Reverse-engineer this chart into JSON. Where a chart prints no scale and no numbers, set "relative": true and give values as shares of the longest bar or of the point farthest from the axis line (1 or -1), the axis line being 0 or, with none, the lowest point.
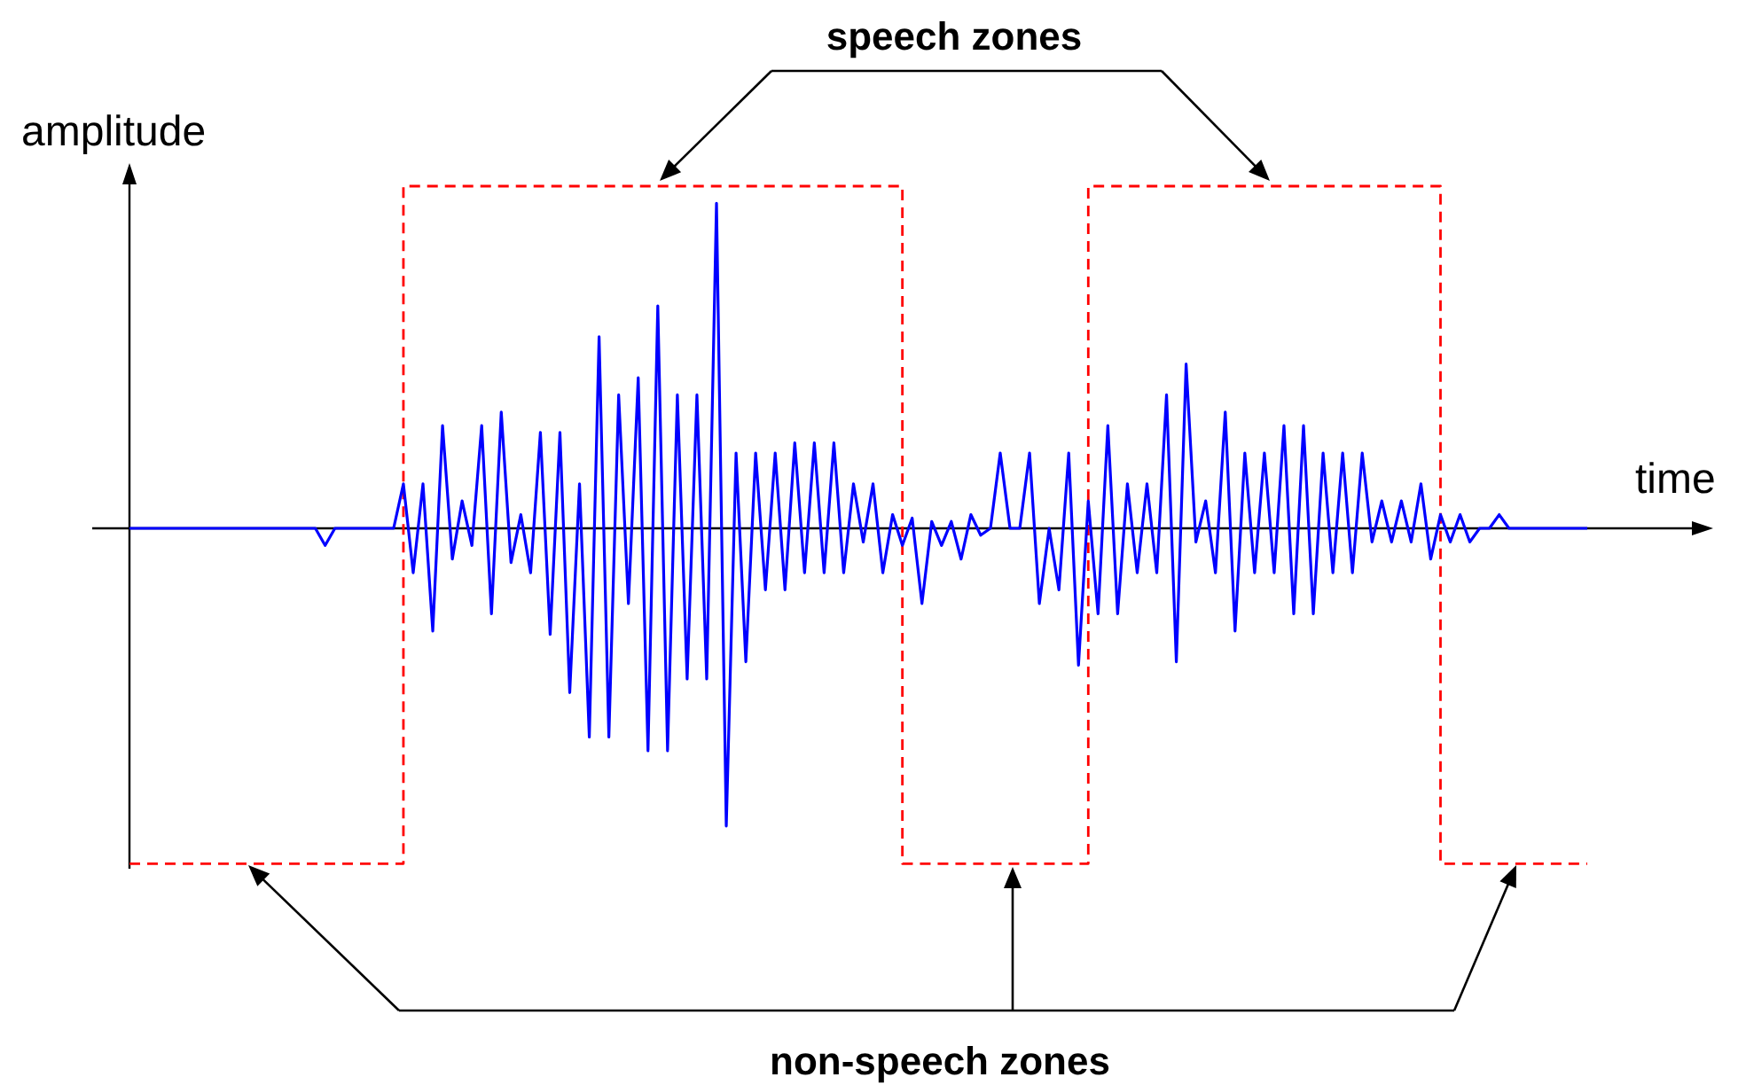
{
  "chart_data": {
    "type": "line",
    "relative": true,
    "xlabel": "time",
    "ylabel": "amplitude",
    "annotations": [
      "speech zones",
      "non-speech zones"
    ],
    "categories": [
      null,
      null,
      null,
      null,
      null,
      null,
      null,
      null,
      null,
      null,
      null,
      null,
      null,
      null,
      null,
      null,
      null,
      null,
      null,
      null,
      null,
      null,
      null,
      null,
      null,
      null,
      null,
      null,
      null,
      null,
      null,
      null,
      null,
      null,
      null,
      null,
      null,
      null,
      null,
      null,
      null,
      null,
      null,
      null,
      null,
      null,
      null,
      null,
      null,
      null,
      null,
      null,
      null,
      null,
      null,
      null,
      null,
      null,
      null,
      null,
      null,
      null,
      null,
      null,
      null,
      null,
      null,
      null,
      null,
      null,
      null,
      null,
      null,
      null,
      null,
      null,
      null,
      null,
      null,
      null,
      null,
      null,
      null,
      null,
      null,
      null,
      null,
      null,
      null,
      null,
      null,
      null,
      null,
      null,
      null,
      null,
      null,
      null,
      null,
      null,
      null,
      null,
      null,
      null,
      null,
      null,
      null,
      null,
      null,
      null,
      null,
      null,
      null,
      null,
      null,
      null,
      null,
      null,
      null,
      null,
      null,
      null,
      null,
      null,
      null,
      null,
      null,
      null,
      null,
      null,
      null,
      null,
      null,
      null,
      null,
      null,
      null,
      null,
      null,
      null,
      null,
      null,
      null,
      null,
      null,
      null,
      null,
      null,
      null,
      null
    ],
    "series": [
      {
        "color": "#0000ff",
        "values": [
          0,
          0,
          0,
          0,
          0,
          0,
          0,
          0,
          0,
          0,
          0,
          0,
          0,
          0,
          0,
          0,
          0,
          0,
          0,
          0,
          -0.05,
          0,
          0,
          0,
          0,
          0,
          0,
          0,
          0.13,
          -0.13,
          0.13,
          -0.3,
          0.3,
          -0.09,
          0.08,
          -0.05,
          0.3,
          -0.25,
          0.34,
          -0.1,
          0.04,
          -0.13,
          0.28,
          -0.31,
          0.28,
          -0.48,
          0.13,
          -0.61,
          0.56,
          -0.61,
          0.39,
          -0.22,
          0.44,
          -0.65,
          0.65,
          -0.65,
          0.39,
          -0.44,
          0.39,
          -0.44,
          0.95,
          -0.87,
          0.22,
          -0.39,
          0.22,
          -0.18,
          0.22,
          -0.18,
          0.25,
          -0.13,
          0.25,
          -0.13,
          0.25,
          -0.13,
          0.13,
          -0.04,
          0.13,
          -0.13,
          0.04,
          -0.05,
          0.03,
          -0.22,
          0.02,
          -0.05,
          0.02,
          -0.09,
          0.04,
          -0.02,
          0,
          0.22,
          0,
          0,
          0.22,
          -0.22,
          0,
          -0.18,
          0.22,
          -0.4,
          0.08,
          -0.25,
          0.3,
          -0.25,
          0.13,
          -0.13,
          0.13,
          -0.13,
          0.39,
          -0.39,
          0.48,
          -0.04,
          0.08,
          -0.13,
          0.34,
          -0.3,
          0.22,
          -0.13,
          0.22,
          -0.13,
          0.3,
          -0.25,
          0.3,
          -0.25,
          0.22,
          -0.13,
          0.22,
          -0.13,
          0.22,
          -0.04,
          0.08,
          -0.04,
          0.08,
          -0.04,
          0.13,
          -0.09,
          0.04,
          -0.04,
          0.04,
          -0.04,
          0,
          0,
          0.04,
          0,
          0,
          0,
          0,
          0,
          0,
          0,
          0,
          0
        ]
      },
      {
        "type": "step",
        "color": "#ff0000",
        "line_style": "dashed",
        "values": [
          -0.98,
          -0.98,
          -0.98,
          -0.98,
          -0.98,
          -0.98,
          -0.98,
          -0.98,
          -0.98,
          -0.98,
          -0.98,
          -0.98,
          -0.98,
          -0.98,
          -0.98,
          -0.98,
          -0.98,
          -0.98,
          -0.98,
          -0.98,
          -0.98,
          -0.98,
          -0.98,
          -0.98,
          -0.98,
          -0.98,
          -0.98,
          -0.98,
          1,
          1,
          1,
          1,
          1,
          1,
          1,
          1,
          1,
          1,
          1,
          1,
          1,
          1,
          1,
          1,
          1,
          1,
          1,
          1,
          1,
          1,
          1,
          1,
          1,
          1,
          1,
          1,
          1,
          1,
          1,
          1,
          1,
          1,
          1,
          1,
          1,
          1,
          1,
          1,
          1,
          1,
          1,
          1,
          1,
          1,
          1,
          1,
          1,
          1,
          1,
          -0.98,
          -0.98,
          -0.98,
          -0.98,
          -0.98,
          -0.98,
          -0.98,
          -0.98,
          -0.98,
          -0.98,
          -0.98,
          -0.98,
          -0.98,
          -0.98,
          -0.98,
          -0.98,
          -0.98,
          -0.98,
          -0.98,
          1,
          1,
          1,
          1,
          1,
          1,
          1,
          1,
          1,
          1,
          1,
          1,
          1,
          1,
          1,
          1,
          1,
          1,
          1,
          1,
          1,
          1,
          1,
          1,
          1,
          1,
          1,
          1,
          1,
          1,
          1,
          1,
          1,
          1,
          1,
          1,
          -0.98,
          -0.98,
          -0.98,
          -0.98,
          -0.98,
          -0.98,
          -0.98,
          -0.98,
          -0.98,
          -0.98,
          -0.98,
          -0.98,
          -0.98,
          -0.98,
          -0.98,
          -0.98
        ]
      }
    ]
  }
}
